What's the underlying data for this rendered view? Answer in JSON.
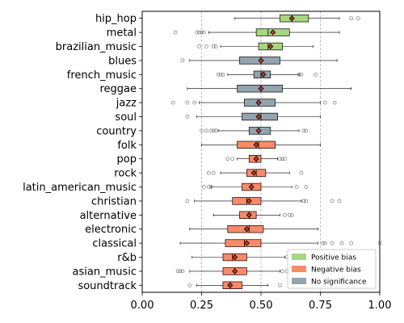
{
  "chart_data": {
    "type": "box",
    "orientation": "horizontal",
    "xlim": [
      0.0,
      1.0
    ],
    "xticks": [
      "0.00",
      "0.25",
      "0.50",
      "0.75",
      "1.00"
    ],
    "xtick_values": [
      0.0,
      0.25,
      0.5,
      0.75,
      1.0
    ],
    "reference_lines": [
      0.25,
      0.5,
      0.75
    ],
    "colors": {
      "positive": "#a8d67f",
      "negative": "#fb8a6a",
      "none": "#93a4ae"
    },
    "legend": {
      "placement": "lower-right",
      "entries": [
        {
          "key": "positive",
          "label": "Positive bias"
        },
        {
          "key": "negative",
          "label": "Negative bias"
        },
        {
          "key": "none",
          "label": "No significance"
        }
      ]
    },
    "categories": [
      {
        "name": "hip_hop",
        "bias": "positive",
        "whisker_low": 0.39,
        "q1": 0.58,
        "median": 0.63,
        "q3": 0.7,
        "whisker_high": 0.83,
        "mean": 0.63,
        "outliers": [
          0.88,
          0.91
        ]
      },
      {
        "name": "metal",
        "bias": "positive",
        "whisker_low": 0.28,
        "q1": 0.48,
        "median": 0.53,
        "q3": 0.62,
        "whisker_high": 0.83,
        "mean": 0.55,
        "outliers": [
          0.14,
          0.23,
          0.24,
          0.25,
          0.26
        ]
      },
      {
        "name": "brazilian_music",
        "bias": "positive",
        "whisker_low": 0.33,
        "q1": 0.49,
        "median": 0.53,
        "q3": 0.59,
        "whisker_high": 0.72,
        "mean": 0.54,
        "outliers": [
          0.24,
          0.27,
          0.3,
          0.31
        ]
      },
      {
        "name": "blues",
        "bias": "none",
        "whisker_low": 0.2,
        "q1": 0.41,
        "median": 0.5,
        "q3": 0.58,
        "whisker_high": 0.82,
        "mean": 0.5,
        "outliers": [
          0.17
        ]
      },
      {
        "name": "french_music",
        "bias": "none",
        "whisker_low": 0.36,
        "q1": 0.47,
        "median": 0.5,
        "q3": 0.54,
        "whisker_high": 0.66,
        "mean": 0.51,
        "outliers": [
          0.32,
          0.33,
          0.34,
          0.66,
          0.67,
          0.73
        ]
      },
      {
        "name": "reggae",
        "bias": "none",
        "whisker_low": 0.19,
        "q1": 0.4,
        "median": 0.5,
        "q3": 0.59,
        "whisker_high": 0.88,
        "mean": 0.5,
        "outliers": []
      },
      {
        "name": "jazz",
        "bias": "none",
        "whisker_low": 0.24,
        "q1": 0.43,
        "median": 0.49,
        "q3": 0.56,
        "whisker_high": 0.75,
        "mean": 0.49,
        "outliers": [
          0.13,
          0.19,
          0.22,
          0.77,
          0.81
        ]
      },
      {
        "name": "soul",
        "bias": "none",
        "whisker_low": 0.23,
        "q1": 0.42,
        "median": 0.5,
        "q3": 0.57,
        "whisker_high": 0.75,
        "mean": 0.49,
        "outliers": [
          0.19
        ]
      },
      {
        "name": "country",
        "bias": "none",
        "whisker_low": 0.32,
        "q1": 0.45,
        "median": 0.49,
        "q3": 0.54,
        "whisker_high": 0.66,
        "mean": 0.49,
        "outliers": [
          0.25,
          0.27,
          0.29,
          0.3,
          0.31,
          0.68,
          0.69
        ]
      },
      {
        "name": "folk",
        "bias": "negative",
        "whisker_low": 0.25,
        "q1": 0.4,
        "median": 0.49,
        "q3": 0.56,
        "whisker_high": 0.75,
        "mean": 0.48,
        "outliers": []
      },
      {
        "name": "pop",
        "bias": "negative",
        "whisker_low": 0.4,
        "q1": 0.45,
        "median": 0.48,
        "q3": 0.5,
        "whisker_high": 0.57,
        "mean": 0.48,
        "outliers": [
          0.36,
          0.38,
          0.58,
          0.59,
          0.6
        ]
      },
      {
        "name": "rock",
        "bias": "negative",
        "whisker_low": 0.33,
        "q1": 0.44,
        "median": 0.48,
        "q3": 0.52,
        "whisker_high": 0.62,
        "mean": 0.47,
        "outliers": [
          0.28,
          0.3,
          0.67
        ]
      },
      {
        "name": "latin_american_music",
        "bias": "negative",
        "whisker_low": 0.29,
        "q1": 0.42,
        "median": 0.46,
        "q3": 0.5,
        "whisker_high": 0.63,
        "mean": 0.46,
        "outliers": [
          0.26,
          0.28,
          0.29,
          0.65,
          0.69
        ]
      },
      {
        "name": "christian",
        "bias": "negative",
        "whisker_low": 0.22,
        "q1": 0.38,
        "median": 0.44,
        "q3": 0.5,
        "whisker_high": 0.67,
        "mean": 0.45,
        "outliers": [
          0.19,
          0.68,
          0.69,
          0.8,
          0.83
        ]
      },
      {
        "name": "alternative",
        "bias": "negative",
        "whisker_low": 0.3,
        "q1": 0.41,
        "median": 0.45,
        "q3": 0.48,
        "whisker_high": 0.58,
        "mean": 0.45,
        "outliers": [
          0.6,
          0.62,
          0.63
        ]
      },
      {
        "name": "electronic",
        "bias": "negative",
        "whisker_low": 0.2,
        "q1": 0.36,
        "median": 0.45,
        "q3": 0.51,
        "whisker_high": 0.74,
        "mean": 0.44,
        "outliers": []
      },
      {
        "name": "classical",
        "bias": "negative",
        "whisker_low": 0.16,
        "q1": 0.35,
        "median": 0.43,
        "q3": 0.5,
        "whisker_high": 0.74,
        "mean": 0.44,
        "outliers": [
          0.76,
          0.77,
          0.8,
          0.84,
          0.88,
          1.0
        ]
      },
      {
        "name": "r&b",
        "bias": "negative",
        "whisker_low": 0.21,
        "q1": 0.34,
        "median": 0.38,
        "q3": 0.44,
        "whisker_high": 0.6,
        "mean": 0.39,
        "outliers": [
          0.61,
          0.63
        ]
      },
      {
        "name": "asian_music",
        "bias": "negative",
        "whisker_low": 0.2,
        "q1": 0.34,
        "median": 0.39,
        "q3": 0.44,
        "whisker_high": 0.58,
        "mean": 0.39,
        "outliers": [
          0.15,
          0.16,
          0.17,
          0.59,
          0.61,
          0.62
        ]
      },
      {
        "name": "soundtrack",
        "bias": "negative",
        "whisker_low": 0.23,
        "q1": 0.34,
        "median": 0.37,
        "q3": 0.42,
        "whisker_high": 0.53,
        "mean": 0.37,
        "outliers": [
          0.2,
          0.58
        ]
      }
    ]
  }
}
